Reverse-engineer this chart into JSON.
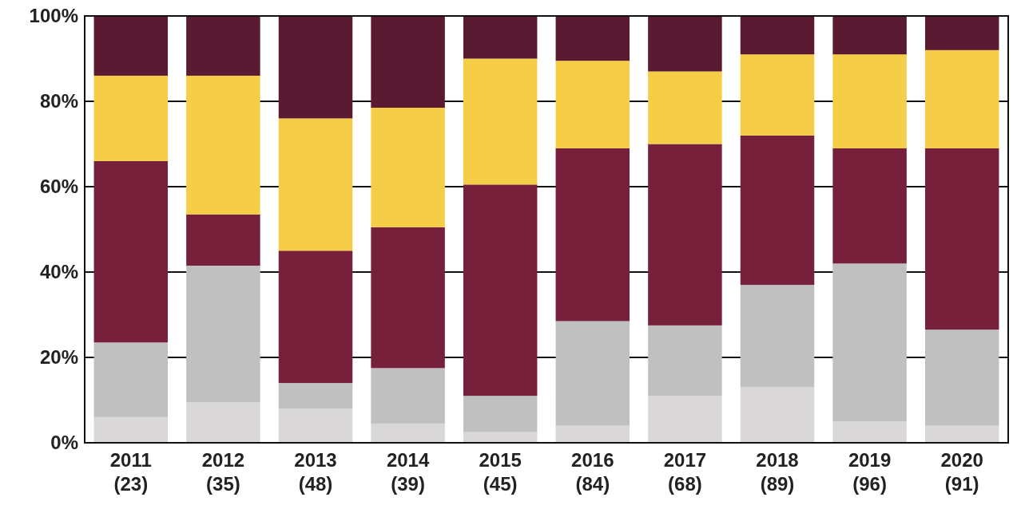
{
  "chart_data": {
    "type": "bar",
    "stacked": true,
    "categories": [
      "2011\n(23)",
      "2012\n(35)",
      "2013\n(48)",
      "2014\n(39)",
      "2015\n(45)",
      "2016\n(84)",
      "2017\n(68)",
      "2018\n(89)",
      "2019\n(96)",
      "2020\n(91)"
    ],
    "series": [
      {
        "color": "#d9d7d7",
        "values": [
          6,
          9.5,
          8,
          4.5,
          2.5,
          4,
          11,
          13,
          5,
          4
        ]
      },
      {
        "color": "#bfc0bf",
        "values": [
          17.5,
          32,
          6,
          13,
          8.5,
          24.5,
          16.5,
          24,
          37,
          22.5
        ]
      },
      {
        "color": "#77203b",
        "values": [
          42.5,
          12,
          31,
          33,
          49.5,
          40.5,
          42.5,
          35,
          27,
          42.5
        ]
      },
      {
        "color": "#f6cd47",
        "values": [
          20,
          32.5,
          31,
          28,
          29.5,
          20.5,
          17,
          19,
          22,
          23
        ]
      },
      {
        "color": "#5a1a31",
        "values": [
          14,
          14,
          24,
          21.5,
          10,
          10.5,
          13,
          9,
          9,
          8
        ]
      }
    ],
    "ylim": [
      0,
      100
    ],
    "yticks": [
      {
        "value": 0,
        "label": "0%"
      },
      {
        "value": 20,
        "label": "20%"
      },
      {
        "value": 40,
        "label": "40%"
      },
      {
        "value": 60,
        "label": "60%"
      },
      {
        "value": 80,
        "label": "80%"
      },
      {
        "value": 100,
        "label": "100%"
      }
    ],
    "grid": "y"
  }
}
